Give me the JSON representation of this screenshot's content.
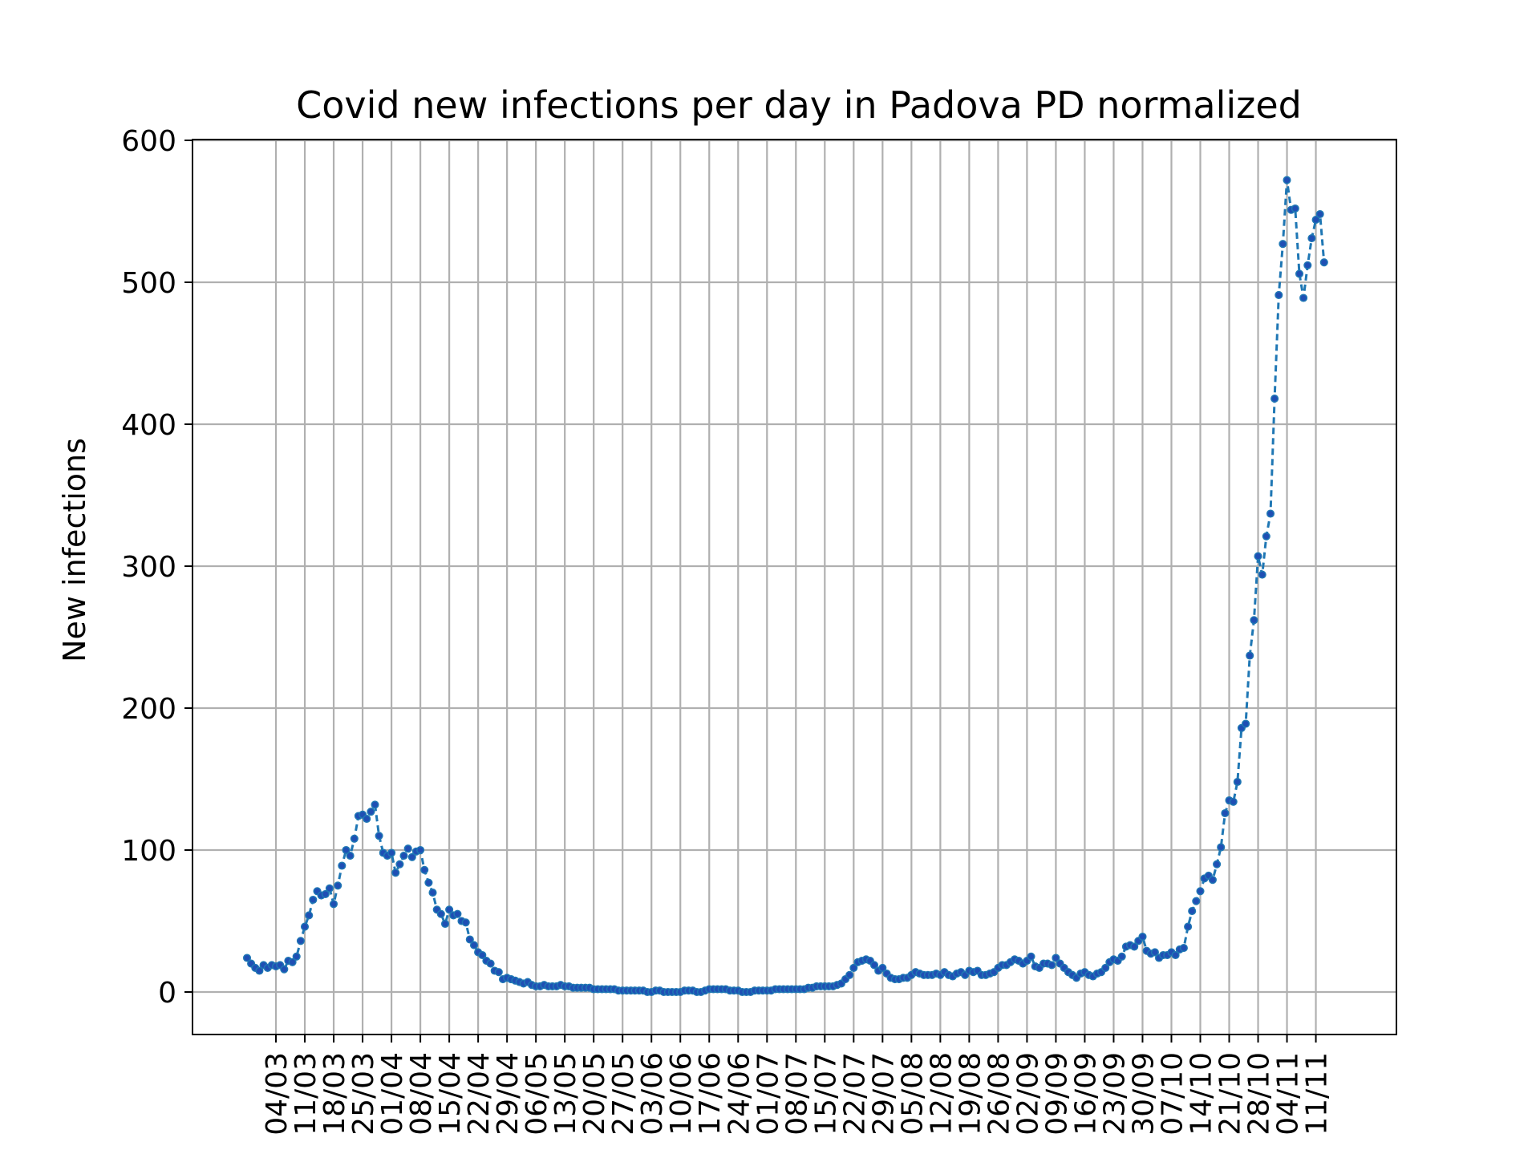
{
  "chart_data": {
    "type": "line",
    "title": "Covid new infections per day in Padova PD normalized",
    "xlabel": "",
    "ylabel": "New infections",
    "ylim": [
      -30,
      600
    ],
    "yticks": [
      0,
      100,
      200,
      300,
      400,
      500,
      600
    ],
    "grid": true,
    "legend": "none",
    "line_color": "#1f77b4",
    "marker_color": "#1f4fb4",
    "grid_color": "#b0b0b0",
    "start_date": "2020-02-26",
    "xticks": [
      {
        "day": 7,
        "label": "04/03"
      },
      {
        "day": 14,
        "label": "11/03"
      },
      {
        "day": 21,
        "label": "18/03"
      },
      {
        "day": 28,
        "label": "25/03"
      },
      {
        "day": 35,
        "label": "01/04"
      },
      {
        "day": 42,
        "label": "08/04"
      },
      {
        "day": 49,
        "label": "15/04"
      },
      {
        "day": 56,
        "label": "22/04"
      },
      {
        "day": 63,
        "label": "29/04"
      },
      {
        "day": 70,
        "label": "06/05"
      },
      {
        "day": 77,
        "label": "13/05"
      },
      {
        "day": 84,
        "label": "20/05"
      },
      {
        "day": 91,
        "label": "27/05"
      },
      {
        "day": 98,
        "label": "03/06"
      },
      {
        "day": 105,
        "label": "10/06"
      },
      {
        "day": 112,
        "label": "17/06"
      },
      {
        "day": 119,
        "label": "24/06"
      },
      {
        "day": 126,
        "label": "01/07"
      },
      {
        "day": 133,
        "label": "08/07"
      },
      {
        "day": 140,
        "label": "15/07"
      },
      {
        "day": 147,
        "label": "22/07"
      },
      {
        "day": 154,
        "label": "29/07"
      },
      {
        "day": 161,
        "label": "05/08"
      },
      {
        "day": 168,
        "label": "12/08"
      },
      {
        "day": 175,
        "label": "19/08"
      },
      {
        "day": 182,
        "label": "26/08"
      },
      {
        "day": 189,
        "label": "02/09"
      },
      {
        "day": 196,
        "label": "09/09"
      },
      {
        "day": 203,
        "label": "16/09"
      },
      {
        "day": 210,
        "label": "23/09"
      },
      {
        "day": 217,
        "label": "30/09"
      },
      {
        "day": 224,
        "label": "07/10"
      },
      {
        "day": 231,
        "label": "14/10"
      },
      {
        "day": 238,
        "label": "21/10"
      },
      {
        "day": 245,
        "label": "28/10"
      },
      {
        "day": 252,
        "label": "04/11"
      },
      {
        "day": 259,
        "label": "11/11"
      }
    ],
    "series": [
      {
        "values": [
          24,
          20,
          17,
          15,
          19,
          17,
          19,
          18,
          19,
          16,
          22,
          21,
          25,
          36,
          46,
          54,
          65,
          71,
          68,
          69,
          73,
          62,
          75,
          89,
          100,
          96,
          108,
          124,
          125,
          122,
          127,
          132,
          110,
          98,
          96,
          98,
          84,
          90,
          96,
          101,
          95,
          99,
          100,
          86,
          77,
          70,
          58,
          55,
          48,
          58,
          54,
          55,
          50,
          49,
          37,
          33,
          28,
          26,
          22,
          20,
          15,
          14,
          9,
          10,
          9,
          8,
          7,
          6,
          7,
          5,
          4,
          4,
          5,
          4,
          4,
          4,
          5,
          4,
          4,
          3,
          3,
          3,
          3,
          3,
          2,
          2,
          2,
          2,
          2,
          2,
          1,
          1,
          1,
          1,
          1,
          1,
          1,
          0,
          0,
          1,
          1,
          0,
          0,
          0,
          0,
          0,
          1,
          1,
          1,
          0,
          0,
          1,
          2,
          2,
          2,
          2,
          2,
          1,
          1,
          1,
          0,
          0,
          0,
          1,
          1,
          1,
          1,
          1,
          2,
          2,
          2,
          2,
          2,
          2,
          2,
          2,
          3,
          3,
          4,
          4,
          4,
          4,
          4,
          5,
          6,
          9,
          12,
          17,
          21,
          22,
          23,
          22,
          19,
          15,
          17,
          13,
          10,
          9,
          9,
          10,
          10,
          12,
          14,
          13,
          12,
          12,
          12,
          13,
          12,
          14,
          12,
          11,
          13,
          14,
          12,
          15,
          14,
          15,
          12,
          12,
          13,
          14,
          17,
          19,
          19,
          21,
          23,
          22,
          20,
          22,
          25,
          18,
          17,
          20,
          20,
          19,
          24,
          20,
          17,
          14,
          12,
          10,
          13,
          14,
          12,
          11,
          13,
          14,
          17,
          21,
          23,
          22,
          25,
          32,
          33,
          32,
          36,
          39,
          29,
          27,
          28,
          24,
          26,
          26,
          28,
          26,
          30,
          31,
          46,
          57,
          64,
          71,
          80,
          82,
          79,
          90,
          102,
          126,
          135,
          134,
          148,
          186,
          189,
          237,
          262,
          307,
          294,
          321,
          337,
          418,
          491,
          527,
          572,
          551,
          552,
          506,
          489,
          512,
          531,
          544,
          548,
          514
        ]
      }
    ]
  }
}
